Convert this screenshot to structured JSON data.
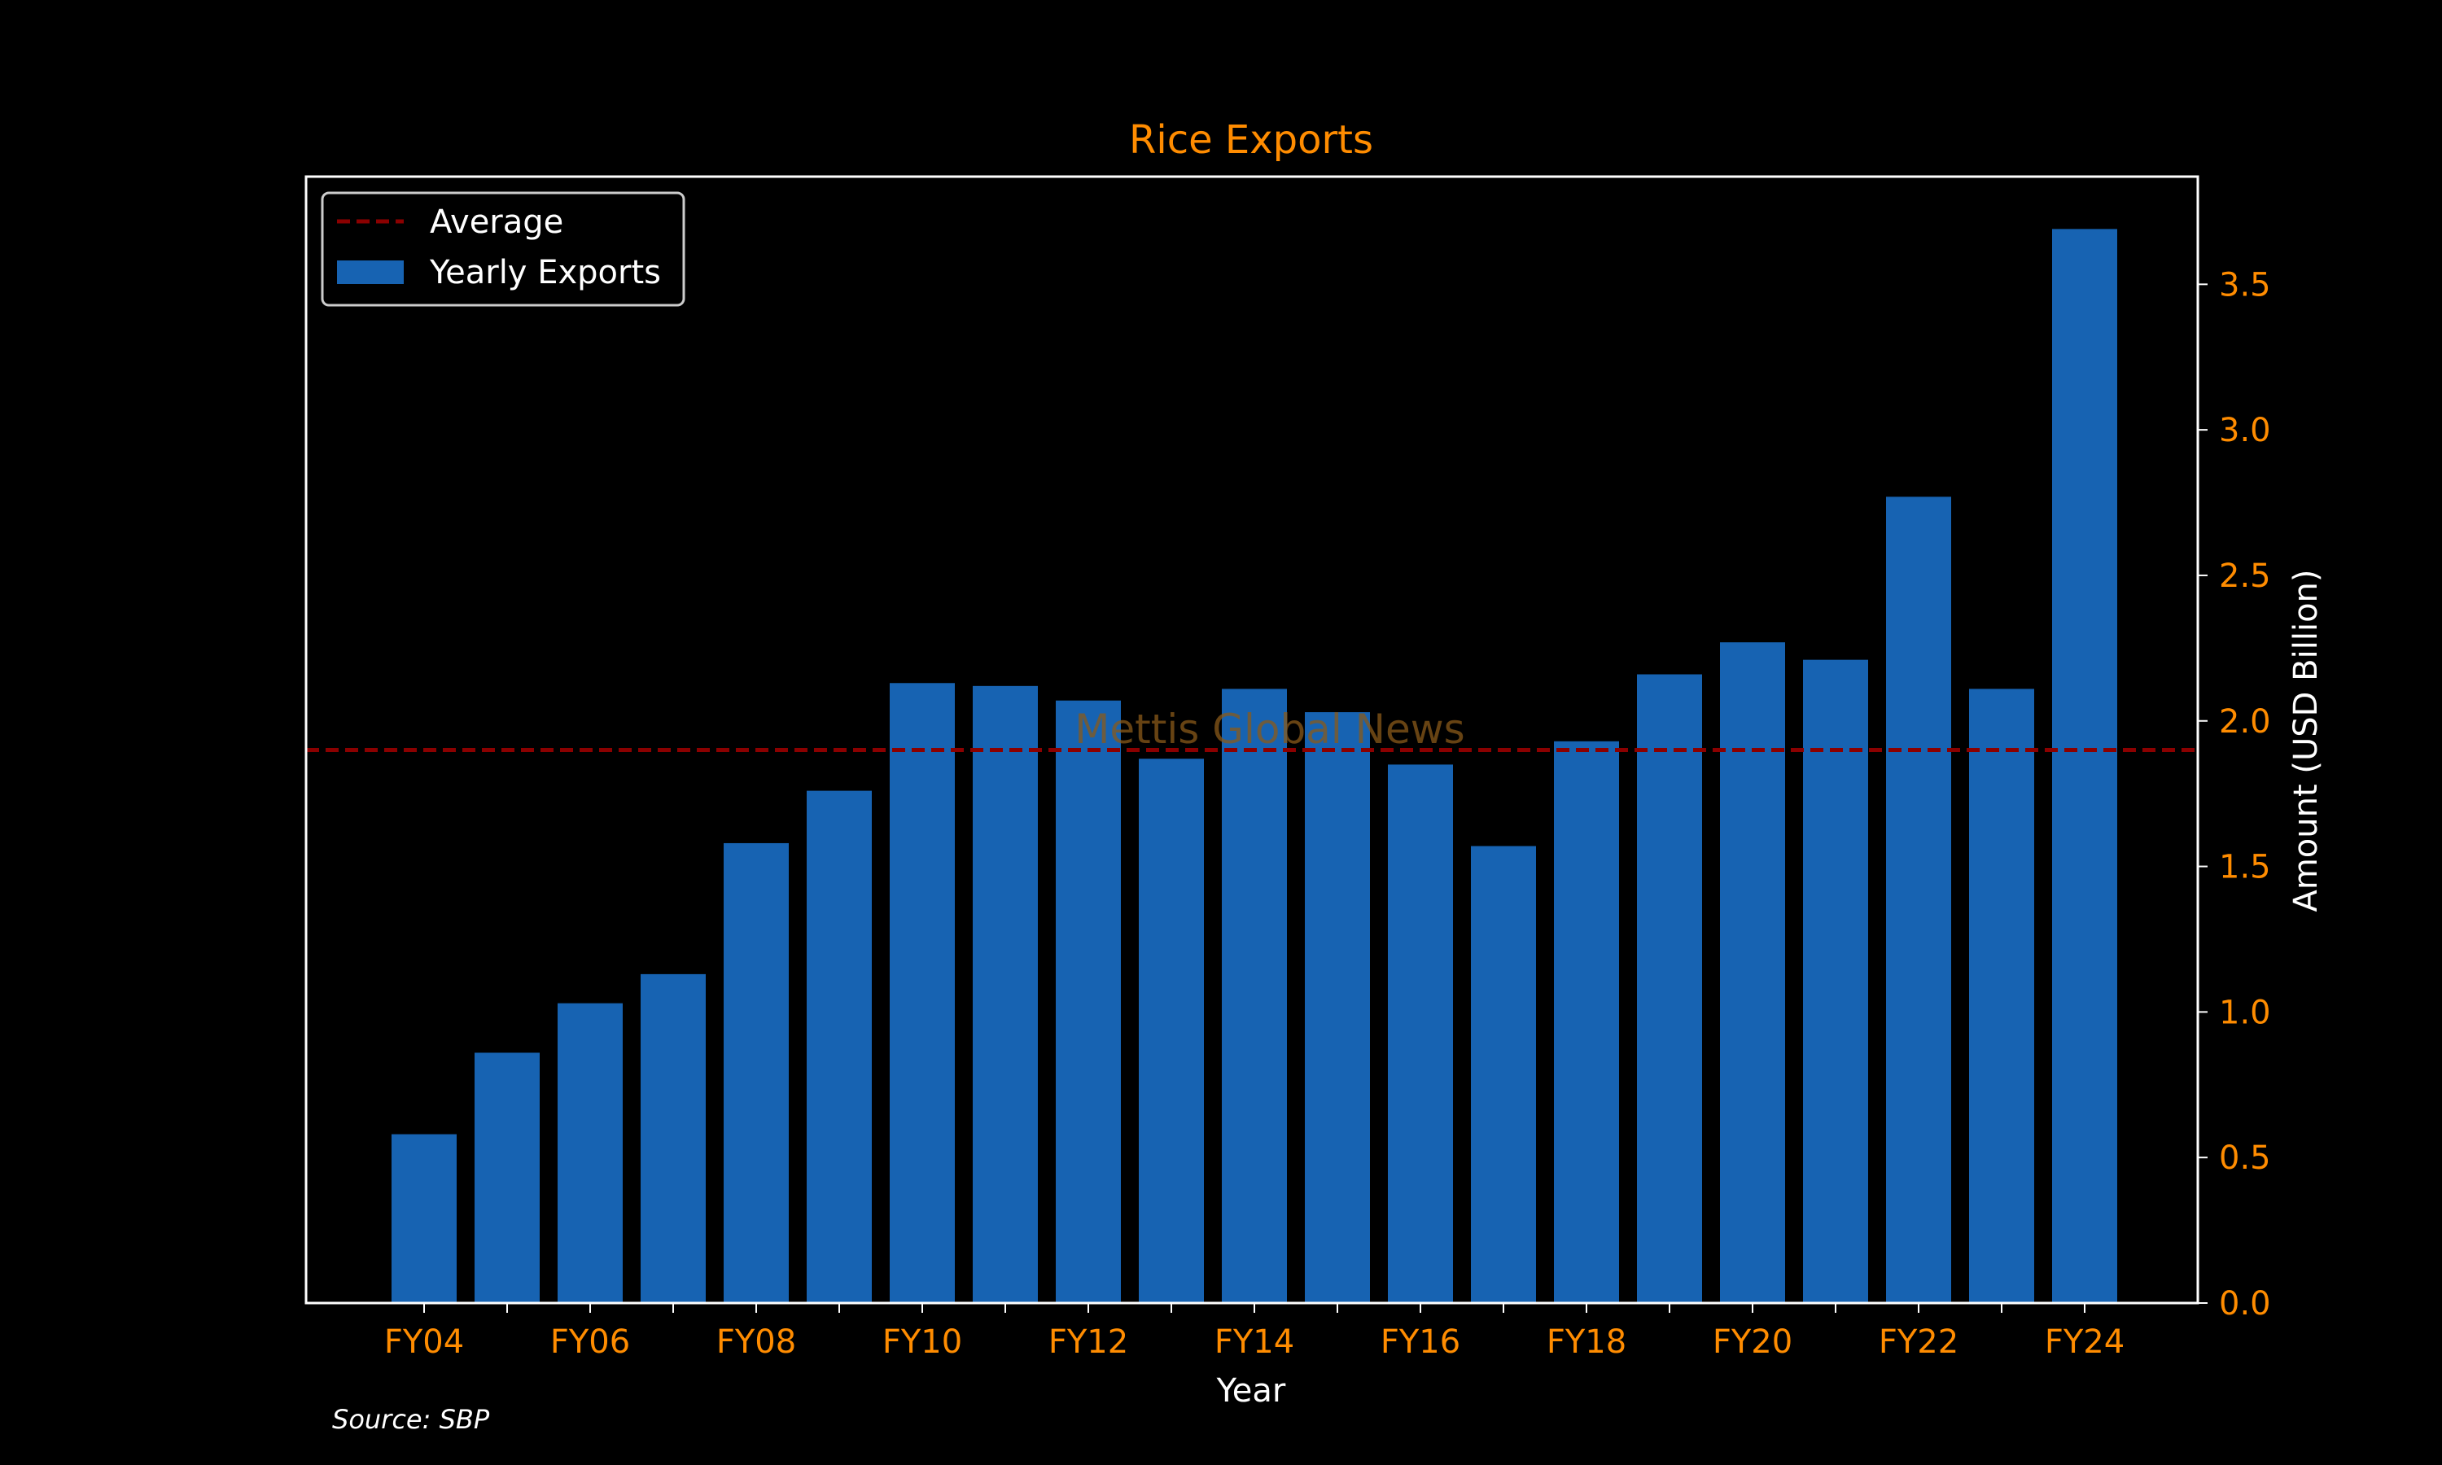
{
  "chart_data": {
    "type": "bar",
    "title": "Rice Exports",
    "xlabel": "Year",
    "ylabel": "Amount (USD Billion)",
    "yaxis_side": "right",
    "ylim": [
      0,
      3.87
    ],
    "yticks": [
      0.0,
      0.5,
      1.0,
      1.5,
      2.0,
      2.5,
      3.0,
      3.5
    ],
    "ytick_labels": [
      "0.0",
      "0.5",
      "1.0",
      "1.5",
      "2.0",
      "2.5",
      "3.0",
      "3.5"
    ],
    "categories": [
      "FY04",
      "FY05",
      "FY06",
      "FY07",
      "FY08",
      "FY09",
      "FY10",
      "FY11",
      "FY12",
      "FY13",
      "FY14",
      "FY15",
      "FY16",
      "FY17",
      "FY18",
      "FY19",
      "FY20",
      "FY21",
      "FY22",
      "FY23",
      "FY24"
    ],
    "xtick_labels": [
      "FY04",
      "",
      "FY06",
      "",
      "FY08",
      "",
      "FY10",
      "",
      "FY12",
      "",
      "FY14",
      "",
      "FY16",
      "",
      "FY18",
      "",
      "FY20",
      "",
      "FY22",
      "",
      "FY24"
    ],
    "series": [
      {
        "name": "Yearly Exports",
        "values": [
          0.58,
          0.86,
          1.03,
          1.13,
          1.58,
          1.76,
          2.13,
          2.12,
          2.07,
          1.87,
          2.11,
          2.03,
          1.85,
          1.57,
          1.93,
          2.16,
          2.27,
          2.21,
          2.77,
          2.11,
          3.69
        ],
        "color": "#1763b2"
      }
    ],
    "reference_line": {
      "name": "Average",
      "value": 1.9,
      "color": "#8b0000",
      "style": "dashed"
    },
    "legend": {
      "position": "top-left",
      "entries": [
        "Average",
        "Yearly Exports"
      ]
    },
    "grid": false,
    "source_note": "Source: SBP",
    "watermark": "Mettis Global News",
    "colors": {
      "background": "#000000",
      "accent_text": "#ff8c00",
      "frame": "#ffffff",
      "label_text": "#ffffff"
    }
  }
}
